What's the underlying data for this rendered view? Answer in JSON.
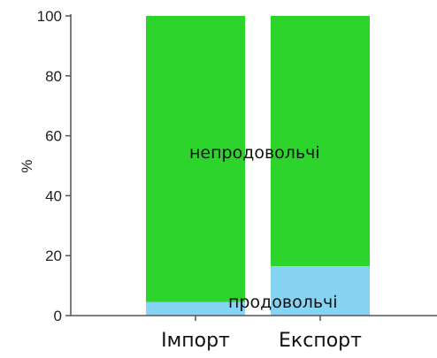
{
  "chart_data": {
    "type": "bar",
    "stacked": true,
    "percent_stacked": true,
    "title": "",
    "xlabel": "",
    "ylabel": "%",
    "ylim": [
      0,
      100
    ],
    "yticks": [
      0,
      20,
      40,
      60,
      80,
      100
    ],
    "categories": [
      "Імпорт",
      "Експорт"
    ],
    "series": [
      {
        "name": "продовольчі",
        "values": [
          4.5,
          16.5
        ],
        "color": "#87d3f2"
      },
      {
        "name": "непродовольчі",
        "values": [
          95.5,
          83.5
        ],
        "color": "#2cd42c"
      }
    ],
    "grid": false,
    "legend": "none"
  }
}
